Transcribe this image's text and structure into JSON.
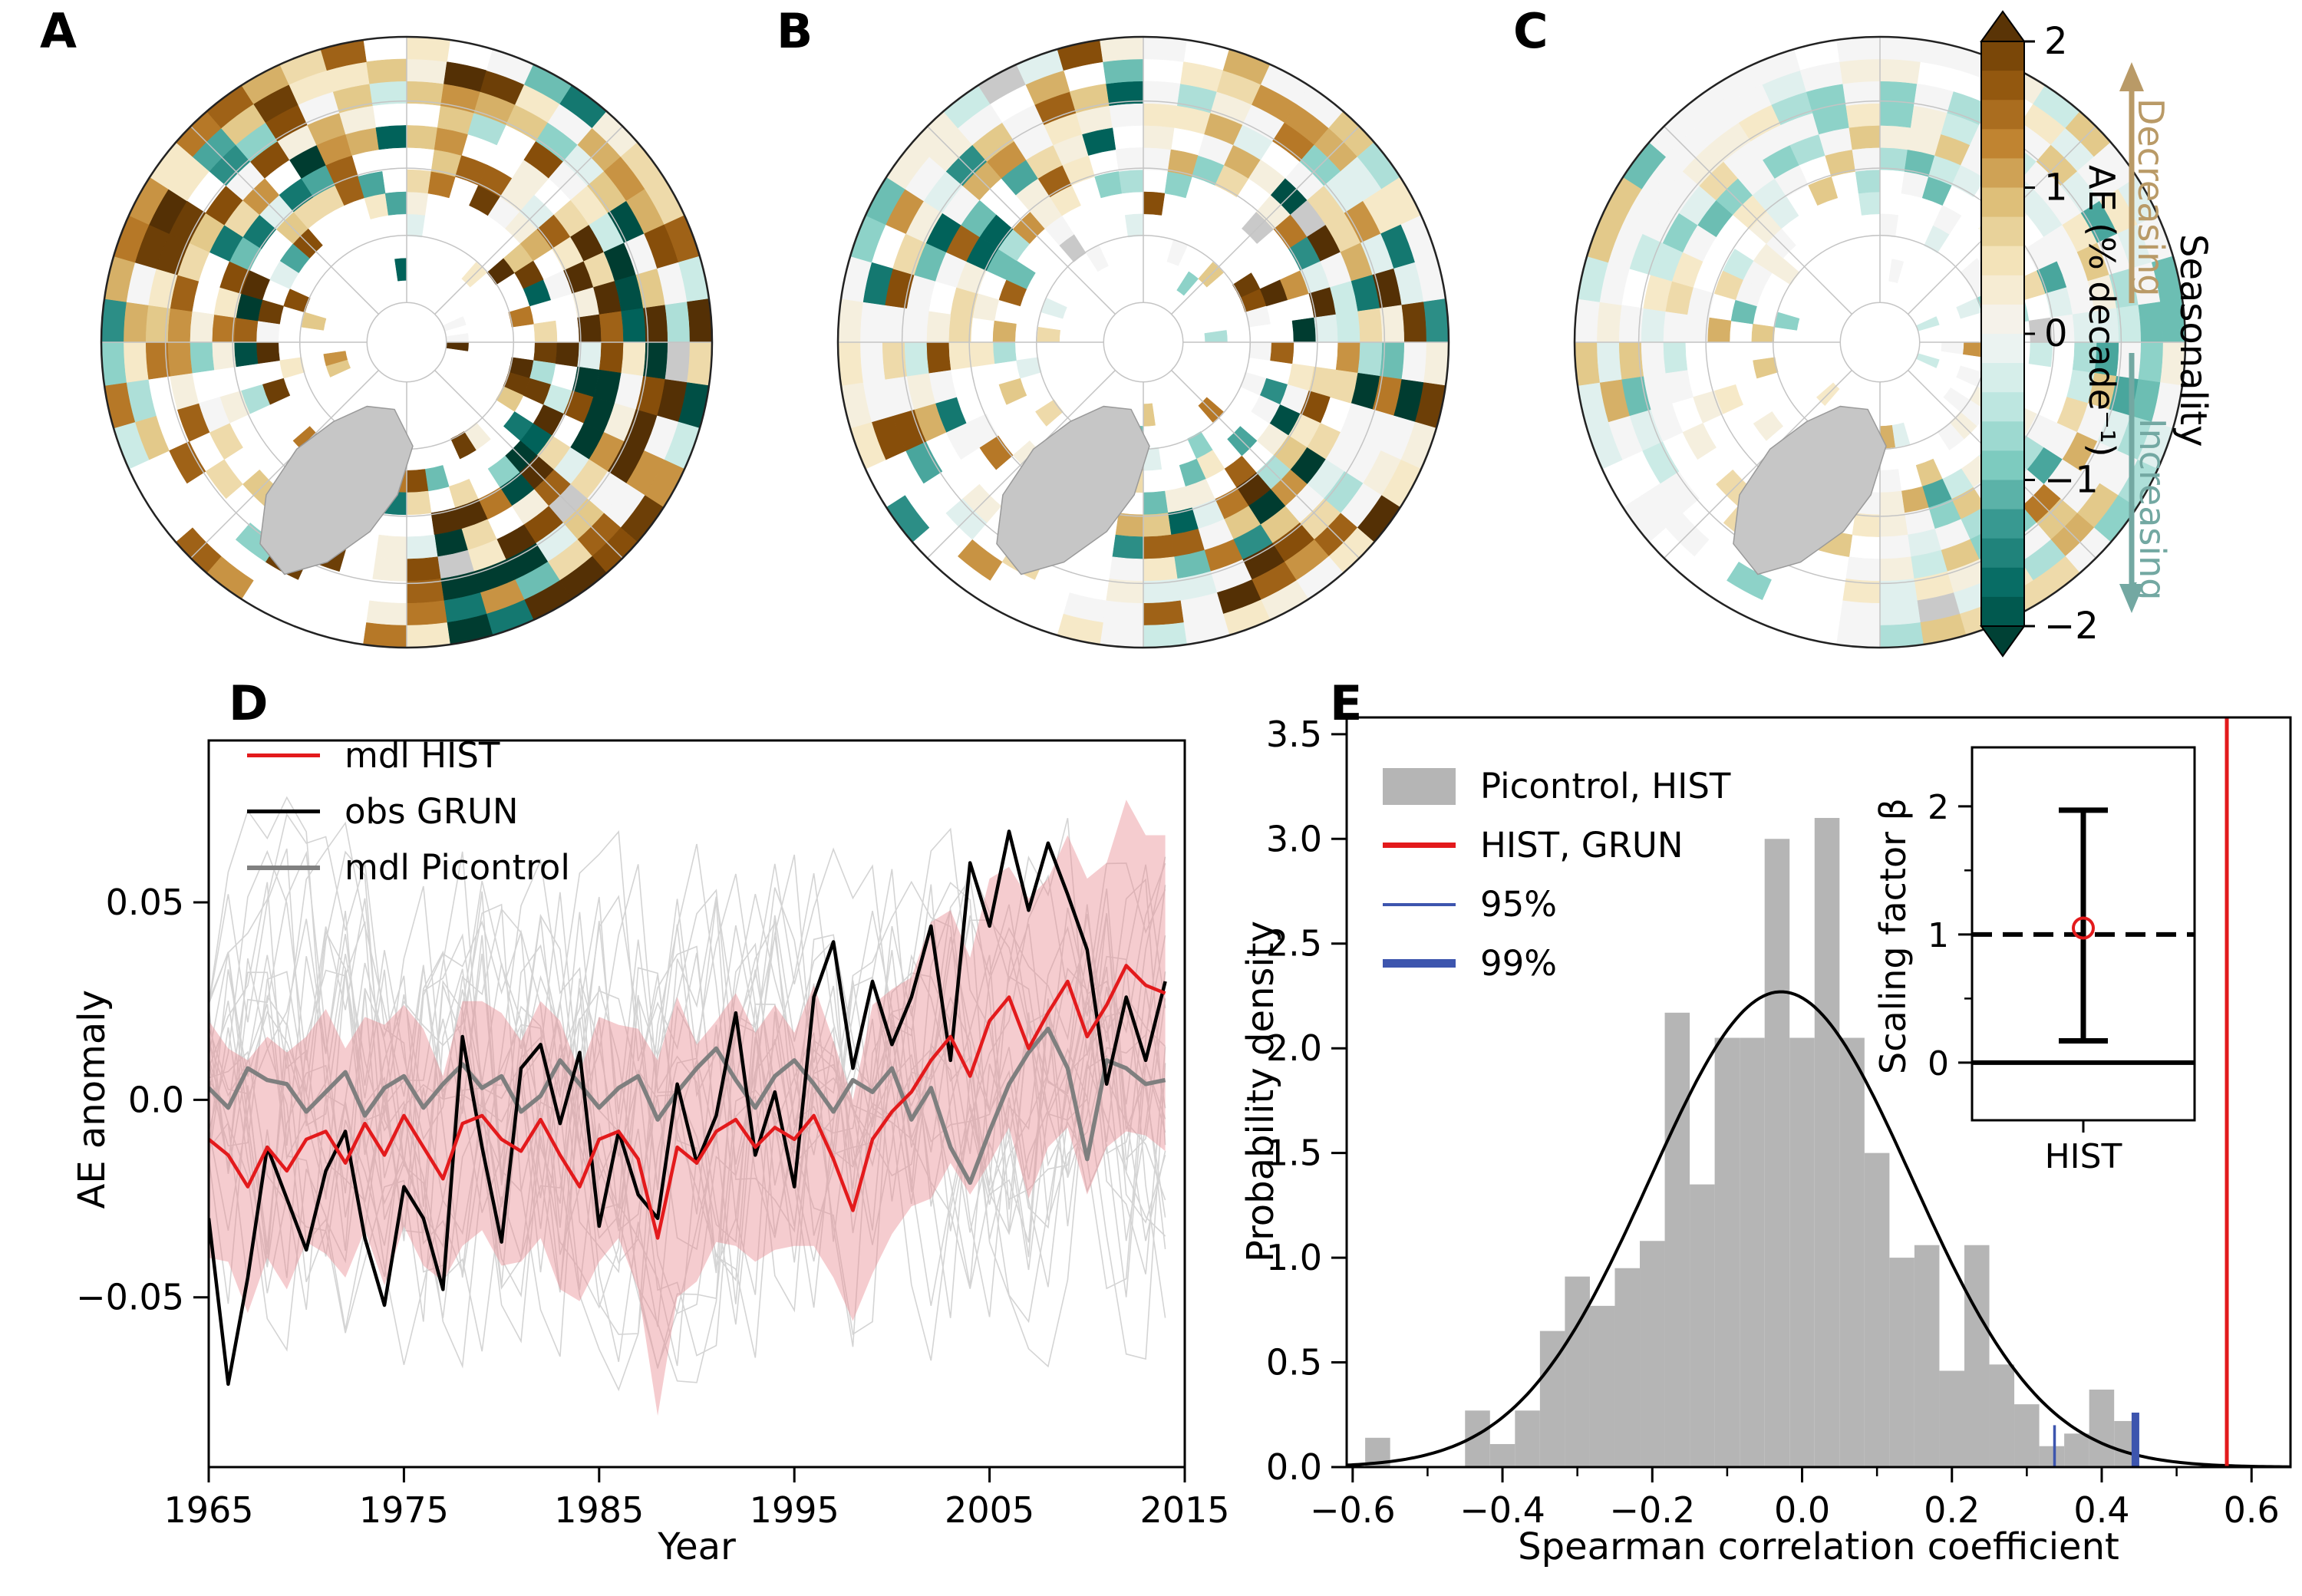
{
  "panel_letters": {
    "a": "A",
    "b": "B",
    "c": "C",
    "d": "D",
    "e": "E"
  },
  "colorbar": {
    "tick_labels": [
      "2",
      "1",
      "0",
      "−1",
      "−2"
    ],
    "tick_values": [
      2,
      1,
      0,
      -1,
      -2
    ],
    "axis_label": "AE (% decade⁻¹)",
    "decreasing_label": "Decreasing",
    "increasing_label": "Increasing",
    "seasonality_label": "Seasonality",
    "decreasing_color": "#b99a67",
    "increasing_color": "#73a8a2",
    "range": [
      -2.2,
      2.2
    ],
    "palette": [
      "#003c30",
      "#01665e",
      "#35978f",
      "#80cdc1",
      "#c7eae5",
      "#f5f5f5",
      "#f6e8c3",
      "#dfc27d",
      "#bf812d",
      "#8c510a",
      "#543005"
    ]
  },
  "maps": [
    {
      "letter": "A",
      "seed": 101,
      "intensity": 1.0,
      "brown_bias": 0.72,
      "dark_exp": 1.25
    },
    {
      "letter": "B",
      "seed": 202,
      "intensity": 0.88,
      "brown_bias": 0.66,
      "dark_exp": 1.85
    },
    {
      "letter": "C",
      "seed": 303,
      "intensity": 0.45,
      "brown_bias": 0.44,
      "dark_exp": 2.3
    }
  ],
  "chart_data": [
    {
      "id": "ae-anomaly-timeseries",
      "type": "line",
      "xlabel": "Year",
      "ylabel": "AE anomaly",
      "xlim": [
        1965,
        2015
      ],
      "ylim": [
        -0.093,
        0.091
      ],
      "xticks": [
        1965,
        1975,
        1985,
        1995,
        2005,
        2015
      ],
      "xtick_labels": [
        "1965",
        "1975",
        "1985",
        "1995",
        "2005",
        "2015"
      ],
      "yticks": [
        0.05,
        0.0,
        -0.05
      ],
      "ytick_labels": [
        "0.05",
        "0.0",
        "−0.05"
      ],
      "x_start": 1965,
      "legend": [
        {
          "label": "mdl HIST",
          "color": "#e31a1c",
          "type": "line",
          "lw": 5
        },
        {
          "label": "obs GRUN",
          "color": "#000000",
          "type": "line",
          "lw": 5
        },
        {
          "label": "mdl Picontrol",
          "color": "#808080",
          "type": "line",
          "lw": 6
        }
      ],
      "series": [
        {
          "name": "mdl HIST",
          "color": "#e31a1c",
          "width": 4.5,
          "values": [
            -0.01,
            -0.014,
            -0.022,
            -0.012,
            -0.018,
            -0.01,
            -0.008,
            -0.016,
            -0.006,
            -0.014,
            -0.004,
            -0.012,
            -0.02,
            -0.006,
            -0.004,
            -0.01,
            -0.013,
            -0.005,
            -0.014,
            -0.022,
            -0.01,
            -0.008,
            -0.015,
            -0.035,
            -0.012,
            -0.016,
            -0.008,
            -0.005,
            -0.012,
            -0.007,
            -0.01,
            -0.004,
            -0.015,
            -0.028,
            -0.01,
            -0.003,
            0.002,
            0.01,
            0.016,
            0.006,
            0.02,
            0.026,
            0.013,
            0.022,
            0.03,
            0.016,
            0.024,
            0.034,
            0.029,
            0.027
          ]
        },
        {
          "name": "obs GRUN",
          "color": "#000000",
          "width": 4.5,
          "values": [
            -0.03,
            -0.072,
            -0.045,
            -0.012,
            -0.025,
            -0.038,
            -0.018,
            -0.008,
            -0.035,
            -0.052,
            -0.022,
            -0.03,
            -0.048,
            0.016,
            -0.012,
            -0.036,
            0.008,
            0.014,
            -0.006,
            0.012,
            -0.032,
            -0.008,
            -0.024,
            -0.03,
            0.004,
            -0.016,
            -0.004,
            0.022,
            -0.014,
            0.002,
            -0.022,
            0.026,
            0.04,
            0.008,
            0.03,
            0.014,
            0.026,
            0.044,
            0.01,
            0.06,
            0.044,
            0.068,
            0.048,
            0.065,
            0.052,
            0.038,
            0.004,
            0.026,
            0.01,
            0.03
          ]
        },
        {
          "name": "mdl Picontrol mean",
          "color": "#7f7f7f",
          "width": 5.5,
          "values": [
            0.003,
            -0.002,
            0.008,
            0.005,
            0.004,
            -0.003,
            0.002,
            0.007,
            -0.004,
            0.003,
            0.006,
            -0.002,
            0.004,
            0.009,
            0.003,
            0.006,
            -0.003,
            0.001,
            0.01,
            0.004,
            -0.002,
            0.003,
            0.006,
            -0.005,
            0.002,
            0.008,
            0.013,
            0.005,
            -0.002,
            0.006,
            0.01,
            0.004,
            -0.003,
            0.005,
            0.002,
            0.008,
            -0.005,
            0.003,
            -0.012,
            -0.021,
            -0.008,
            0.004,
            0.012,
            0.018,
            0.008,
            -0.015,
            0.01,
            0.008,
            0.004,
            0.005
          ]
        }
      ],
      "band": {
        "name": "HIST ensemble spread",
        "color": "#e98d95",
        "opacity": 0.45,
        "halfwidth": [
          0.03,
          0.027,
          0.032,
          0.028,
          0.03,
          0.026,
          0.031,
          0.029,
          0.027,
          0.033,
          0.028,
          0.03,
          0.026,
          0.031,
          0.029,
          0.032,
          0.028,
          0.03,
          0.034,
          0.029,
          0.031,
          0.027,
          0.033,
          0.045,
          0.038,
          0.03,
          0.028,
          0.032,
          0.029,
          0.031,
          0.027,
          0.033,
          0.03,
          0.028,
          0.034,
          0.031,
          0.029,
          0.035,
          0.032,
          0.03,
          0.036,
          0.033,
          0.038,
          0.034,
          0.037,
          0.04,
          0.036,
          0.042,
          0.038,
          0.04
        ]
      },
      "members": {
        "name": "mdl Picontrol members",
        "count": 22,
        "seed": 42,
        "step": 0.095,
        "damp": 0.5,
        "color": "#d4d4d4",
        "width": 1.6
      }
    },
    {
      "id": "spearman-histogram",
      "type": "bar",
      "xlabel": "Spearman correlation coefficient",
      "ylabel": "Probability density",
      "xlim": [
        -0.608,
        0.652
      ],
      "ylim": [
        0,
        3.58
      ],
      "xticks": [
        -0.6,
        -0.4,
        -0.2,
        0.0,
        0.2,
        0.4,
        0.6
      ],
      "xtick_labels": [
        "−0.6",
        "−0.4",
        "−0.2",
        "0.0",
        "0.2",
        "0.4",
        "0.6"
      ],
      "minor_xtick_step": 0.1,
      "yticks": [
        0,
        0.5,
        1,
        1.5,
        2,
        2.5,
        3,
        3.5
      ],
      "ytick_labels": [
        "0.0",
        "0.5",
        "1.0",
        "1.5",
        "2.0",
        "2.5",
        "3.0",
        "3.5"
      ],
      "bins": {
        "start": -0.5833,
        "width": 0.03333,
        "color": "#b5b5b5",
        "heights": [
          0.14,
          0,
          0,
          0,
          0.27,
          0.11,
          0.27,
          0.65,
          0.91,
          0.77,
          0.95,
          1.08,
          2.17,
          1.35,
          2.05,
          2.05,
          3.0,
          2.05,
          3.1,
          2.05,
          1.5,
          1.0,
          1.06,
          0.46,
          1.06,
          0.49,
          0.3,
          0.1,
          0.16,
          0.37,
          0.22
        ]
      },
      "curve": {
        "type": "normal",
        "mean": -0.028,
        "sigma": 0.175,
        "peak": 2.27,
        "color": "#000000",
        "width": 4
      },
      "vlines": [
        {
          "name": "HIST-GRUN correlation",
          "x": 0.567,
          "color": "#e31a1c",
          "width": 5,
          "full_height": true
        },
        {
          "name": "95% threshold",
          "x": 0.337,
          "color": "#3d55ae",
          "width": 3.5,
          "top": 0.2
        },
        {
          "name": "99% threshold",
          "x": 0.445,
          "color": "#3d55ae",
          "width": 10,
          "top": 0.26
        }
      ],
      "legend": [
        {
          "label": "Picontrol, HIST",
          "color": "#b5b5b5",
          "type": "patch"
        },
        {
          "label": "HIST, GRUN",
          "color": "#e31a1c",
          "type": "line",
          "lw": 7
        },
        {
          "label": "95%",
          "color": "#3d55ae",
          "type": "line",
          "lw": 4
        },
        {
          "label": "99%",
          "color": "#3d55ae",
          "type": "line",
          "lw": 11
        }
      ]
    },
    {
      "id": "scaling-factor-inset",
      "type": "errorbar",
      "ylabel": "Scaling factor β",
      "categories": [
        "HIST"
      ],
      "center": 1.05,
      "low": 0.17,
      "high": 1.97,
      "reference_dashed": 1.0,
      "reference_solid": 0.0,
      "ylim": [
        -0.45,
        2.46
      ],
      "yticks": [
        0,
        1,
        2
      ],
      "ytick_labels": [
        "0",
        "1",
        "2"
      ],
      "minor_yticks": [
        0.5,
        1.5
      ],
      "marker_color": "#e31a1c"
    }
  ]
}
